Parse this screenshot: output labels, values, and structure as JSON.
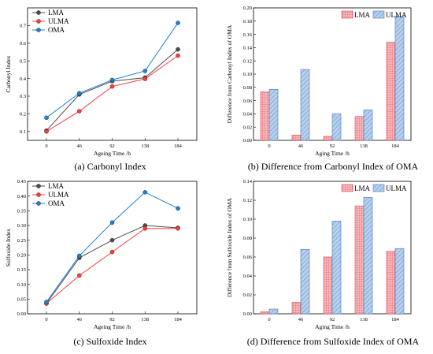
{
  "colors": {
    "LMA": "#4d4d4d",
    "ULMA": "#ff3b3b",
    "OMA": "#1f7fd8",
    "bar_LMA": "#f4a3a8",
    "bar_ULMA": "#a9c6e8"
  },
  "chart_data": [
    {
      "id": "a",
      "type": "line",
      "caption": "(a) Carbonyl Index",
      "xlabel": "Ageing Time /h",
      "ylabel": "Carbonyl Index",
      "x": [
        0,
        46,
        92,
        138,
        184
      ],
      "ylim": [
        0.05,
        0.8
      ],
      "yticks": [
        0.1,
        0.2,
        0.3,
        0.4,
        0.5,
        0.6,
        0.7
      ],
      "legend": "top-left",
      "series": [
        {
          "name": "LMA",
          "values": [
            0.105,
            0.31,
            0.385,
            0.405,
            0.565
          ]
        },
        {
          "name": "ULMA",
          "values": [
            0.1,
            0.215,
            0.355,
            0.398,
            0.53
          ]
        },
        {
          "name": "OMA",
          "values": [
            0.178,
            0.317,
            0.392,
            0.443,
            0.715
          ]
        }
      ]
    },
    {
      "id": "b",
      "type": "bar",
      "caption": "(b) Difference from Carbonyl Index of OMA",
      "xlabel": "Aging Time /h",
      "ylabel": "Difference from Carbonyl Index of OMA",
      "categories": [
        "0",
        "46",
        "92",
        "138",
        "184"
      ],
      "ylim": [
        0,
        0.2
      ],
      "yticks": [
        "0.00",
        "0.02",
        "0.04",
        "0.06",
        "0.08",
        "0.10",
        "0.12",
        "0.14",
        "0.16",
        "0.18",
        "0.20"
      ],
      "legend": "top-right",
      "series": [
        {
          "name": "LMA",
          "values": [
            0.073,
            0.008,
            0.006,
            0.036,
            0.148
          ]
        },
        {
          "name": "ULMA",
          "values": [
            0.077,
            0.107,
            0.04,
            0.046,
            0.187
          ]
        }
      ]
    },
    {
      "id": "c",
      "type": "line",
      "caption": "(c) Sulfoxide Index",
      "xlabel": "Ageing Time /h",
      "ylabel": "Sulfoxide Index",
      "x": [
        0,
        46,
        92,
        138,
        184
      ],
      "ylim": [
        0,
        0.45
      ],
      "yticks": [
        "0.00",
        "0.05",
        "0.10",
        "0.15",
        "0.20",
        "0.25",
        "0.30",
        "0.35",
        "0.40",
        "0.45"
      ],
      "legend": "top-left",
      "series": [
        {
          "name": "LMA",
          "values": [
            0.035,
            0.19,
            0.25,
            0.3,
            0.292
          ]
        },
        {
          "name": "ULMA",
          "values": [
            0.035,
            0.13,
            0.21,
            0.29,
            0.29
          ]
        },
        {
          "name": "OMA",
          "values": [
            0.04,
            0.197,
            0.31,
            0.413,
            0.358
          ]
        }
      ]
    },
    {
      "id": "d",
      "type": "bar",
      "caption": "(d) Difference from Sulfoxide Index of OMA",
      "xlabel": "Aging Time /h",
      "ylabel": "Difference from Sulfoxide Index of OMA",
      "categories": [
        "0",
        "46",
        "92",
        "138",
        "184"
      ],
      "ylim": [
        0,
        0.14
      ],
      "yticks": [
        "0.00",
        "0.02",
        "0.04",
        "0.06",
        "0.08",
        "0.10",
        "0.12",
        "0.14"
      ],
      "legend": "top-right",
      "series": [
        {
          "name": "LMA",
          "values": [
            0.002,
            0.012,
            0.06,
            0.114,
            0.066
          ]
        },
        {
          "name": "ULMA",
          "values": [
            0.005,
            0.068,
            0.098,
            0.123,
            0.069
          ]
        }
      ]
    }
  ]
}
